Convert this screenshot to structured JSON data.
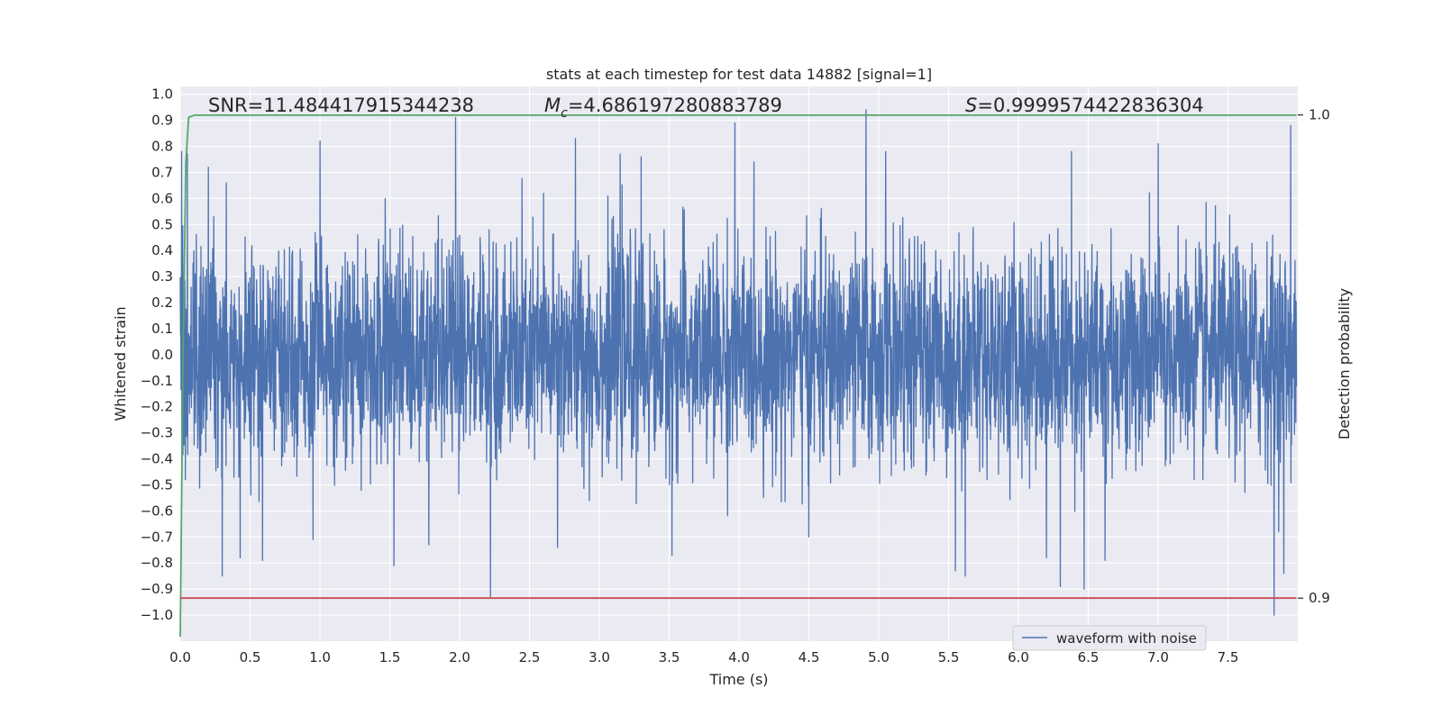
{
  "chart_data": {
    "type": "line",
    "title": "stats at each timestep for test data 14882 [signal=1]",
    "xlabel": "Time (s)",
    "ylabel": "Whitened strain",
    "y2label": "Detection probability",
    "xlim": [
      0.0,
      8.0
    ],
    "ylim": [
      -1.1,
      1.03
    ],
    "y2lim": [
      0.8911,
      1.0059
    ],
    "x_ticks": [
      "0.0",
      "0.5",
      "1.0",
      "1.5",
      "2.0",
      "2.5",
      "3.0",
      "3.5",
      "4.0",
      "4.5",
      "5.0",
      "5.5",
      "6.0",
      "6.5",
      "7.0",
      "7.5"
    ],
    "y_ticks": [
      "1.0",
      "0.9",
      "0.8",
      "0.7",
      "0.6",
      "0.5",
      "0.4",
      "0.3",
      "0.2",
      "0.1",
      "0.0",
      "−0.1",
      "−0.2",
      "−0.3",
      "−0.4",
      "−0.5",
      "−0.6",
      "−0.7",
      "−0.8",
      "−0.9",
      "−1.0"
    ],
    "y2_ticks": [
      "1.0",
      "0.9"
    ],
    "grid": true,
    "legend_position": "lower-right",
    "annotations": {
      "snr": "SNR=11.484417915344238",
      "mc_symbol": "M",
      "mc_subscript": "c",
      "mc_value": "=4.686197280883789",
      "s_symbol": "S",
      "s_value": "=0.9999574422836304"
    },
    "series": [
      {
        "name": "waveform with noise",
        "axis": "left",
        "color": "#4c72b0",
        "description_style": "noise",
        "x_range": [
          0.0,
          7.99
        ],
        "sample_count": 4096,
        "typical_amplitude": 0.33,
        "notable_peaks": [
          {
            "x": 0.01,
            "y": 0.78
          },
          {
            "x": 0.05,
            "y": 0.77
          },
          {
            "x": 0.2,
            "y": 0.72
          },
          {
            "x": 0.3,
            "y": -0.85
          },
          {
            "x": 0.33,
            "y": 0.66
          },
          {
            "x": 0.43,
            "y": -0.78
          },
          {
            "x": 0.59,
            "y": -0.79
          },
          {
            "x": 0.95,
            "y": -0.71
          },
          {
            "x": 1.0,
            "y": 0.82
          },
          {
            "x": 1.53,
            "y": -0.81
          },
          {
            "x": 1.78,
            "y": -0.73
          },
          {
            "x": 1.97,
            "y": 0.91
          },
          {
            "x": 2.22,
            "y": -0.93
          },
          {
            "x": 2.6,
            "y": 0.62
          },
          {
            "x": 2.7,
            "y": -0.74
          },
          {
            "x": 2.83,
            "y": 0.83
          },
          {
            "x": 3.15,
            "y": 0.77
          },
          {
            "x": 3.3,
            "y": 0.76
          },
          {
            "x": 3.52,
            "y": -0.77
          },
          {
            "x": 3.97,
            "y": 0.89
          },
          {
            "x": 4.5,
            "y": -0.7
          },
          {
            "x": 4.91,
            "y": 0.94
          },
          {
            "x": 5.05,
            "y": 0.78
          },
          {
            "x": 5.55,
            "y": -0.83
          },
          {
            "x": 5.62,
            "y": -0.85
          },
          {
            "x": 6.2,
            "y": -0.78
          },
          {
            "x": 6.3,
            "y": -0.89
          },
          {
            "x": 6.38,
            "y": 0.78
          },
          {
            "x": 6.47,
            "y": -0.9
          },
          {
            "x": 6.62,
            "y": -0.79
          },
          {
            "x": 7.0,
            "y": 0.81
          },
          {
            "x": 7.83,
            "y": -1.0
          },
          {
            "x": 7.9,
            "y": -0.84
          },
          {
            "x": 7.95,
            "y": 0.88
          }
        ]
      },
      {
        "name": "",
        "axis": "right",
        "color": "#55a868",
        "points": [
          [
            0.0,
            0.892
          ],
          [
            0.02,
            0.95
          ],
          [
            0.04,
            0.99
          ],
          [
            0.06,
            0.9995
          ],
          [
            0.1,
            0.99996
          ],
          [
            7.99,
            0.99996
          ]
        ]
      },
      {
        "name": "",
        "axis": "right",
        "color": "#c44e52",
        "points": [
          [
            0.0,
            0.9
          ],
          [
            7.99,
            0.9
          ]
        ]
      }
    ]
  }
}
